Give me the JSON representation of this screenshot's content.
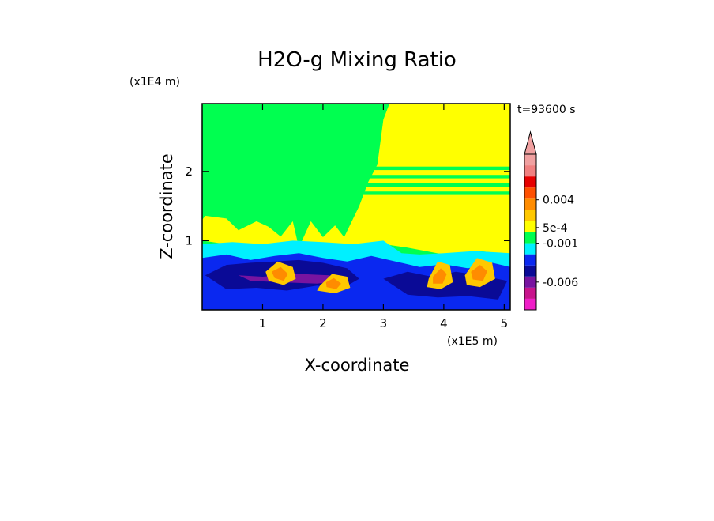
{
  "chart_data": {
    "type": "heatmap",
    "title": "H2O-g Mixing Ratio",
    "xlabel": "X-coordinate",
    "ylabel": "Z-coordinate",
    "x_unit": "(x1E5 m)",
    "y_unit": "(x1E4 m)",
    "time_label": "t=93600 s",
    "xlim": [
      0,
      5.1
    ],
    "ylim": [
      0,
      2.98
    ],
    "x_ticks": [
      "1",
      "2",
      "3",
      "4",
      "5"
    ],
    "y_ticks": [
      "1",
      "2"
    ],
    "colorbar": {
      "colors": [
        "#f01ec8",
        "#c8148c",
        "#7814a0",
        "#0a0a96",
        "#0a28f0",
        "#00f0ff",
        "#00ff50",
        "#ffff00",
        "#ffc800",
        "#ff8c00",
        "#ff5000",
        "#e60000",
        "#f08080",
        "#f0a0a0"
      ],
      "labels": [
        {
          "text": "-0.006",
          "level": 2.5
        },
        {
          "text": "-0.001",
          "level": 6.0
        },
        {
          "text": "5e-4",
          "level": 7.4
        },
        {
          "text": "0.004",
          "level": 9.9
        }
      ],
      "extend": "max"
    },
    "regions": [
      {
        "level": 7,
        "x": [
          0,
          0.05,
          0.4,
          0.6,
          0.9,
          1.1,
          1.3,
          1.5,
          1.6,
          1.8,
          2.0,
          2.2,
          2.35,
          2.6,
          2.75,
          2.9,
          3.0,
          3.1,
          3.4,
          3.7,
          4.0,
          4.3,
          4.6,
          4.9,
          5.1,
          5.1,
          4.6,
          4.0,
          3.4,
          3.0,
          2.7,
          2.4,
          2.0,
          1.6,
          1.2,
          0.8,
          0.4,
          0
        ],
        "y": [
          1.3,
          1.36,
          1.32,
          1.15,
          1.28,
          1.2,
          1.06,
          1.28,
          0.9,
          1.28,
          1.05,
          1.22,
          1.05,
          1.5,
          1.85,
          2.1,
          2.75,
          2.98,
          2.98,
          2.98,
          2.98,
          2.98,
          2.98,
          2.98,
          2.98,
          0.8,
          0.85,
          0.8,
          0.9,
          0.95,
          0.9,
          0.85,
          0.9,
          0.95,
          0.85,
          0.9,
          0.95,
          1.0
        ]
      },
      {
        "level": 5,
        "x": [
          0,
          0.5,
          1.0,
          1.5,
          2.0,
          2.5,
          3.0,
          3.3,
          3.6,
          4.0,
          4.5,
          5.1,
          5.1,
          0
        ],
        "y": [
          0.95,
          0.98,
          0.95,
          1.0,
          0.98,
          0.95,
          1.0,
          0.82,
          0.8,
          0.82,
          0.85,
          0.82,
          0,
          0
        ]
      },
      {
        "level": 4,
        "x": [
          0,
          0.4,
          0.8,
          1.2,
          1.6,
          2.0,
          2.4,
          2.8,
          3.2,
          3.6,
          4.0,
          4.4,
          4.8,
          5.1,
          5.1,
          0
        ],
        "y": [
          0.75,
          0.8,
          0.72,
          0.78,
          0.82,
          0.75,
          0.7,
          0.78,
          0.7,
          0.62,
          0.66,
          0.6,
          0.68,
          0.62,
          0,
          0
        ]
      },
      {
        "level": 3,
        "x": [
          0.05,
          0.4,
          0.8,
          1.2,
          1.6,
          2.0,
          2.4,
          2.6,
          2.3,
          1.9,
          1.4,
          0.9,
          0.4
        ],
        "y": [
          0.5,
          0.65,
          0.68,
          0.7,
          0.72,
          0.68,
          0.6,
          0.45,
          0.3,
          0.35,
          0.28,
          0.32,
          0.3
        ]
      },
      {
        "level": 3,
        "x": [
          3.0,
          3.4,
          3.8,
          4.2,
          4.6,
          5.05,
          4.9,
          4.4,
          3.9,
          3.4
        ],
        "y": [
          0.45,
          0.55,
          0.48,
          0.55,
          0.5,
          0.42,
          0.15,
          0.2,
          0.18,
          0.22
        ]
      },
      {
        "level": 2,
        "x": [
          0.6,
          1.0,
          1.6,
          2.1,
          2.3,
          1.9,
          1.3,
          0.8
        ],
        "y": [
          0.5,
          0.48,
          0.52,
          0.5,
          0.42,
          0.38,
          0.4,
          0.42
        ]
      },
      {
        "level": 8,
        "x": [
          1.05,
          1.25,
          1.5,
          1.55,
          1.35,
          1.1
        ],
        "y": [
          0.55,
          0.7,
          0.62,
          0.45,
          0.36,
          0.42
        ]
      },
      {
        "level": 8,
        "x": [
          1.95,
          2.15,
          2.4,
          2.45,
          2.2,
          1.9
        ],
        "y": [
          0.35,
          0.52,
          0.48,
          0.32,
          0.24,
          0.28
        ]
      },
      {
        "level": 8,
        "x": [
          3.75,
          3.9,
          4.1,
          4.15,
          3.95,
          3.72
        ],
        "y": [
          0.45,
          0.7,
          0.65,
          0.4,
          0.3,
          0.33
        ]
      },
      {
        "level": 8,
        "x": [
          4.35,
          4.55,
          4.8,
          4.85,
          4.6,
          4.38
        ],
        "y": [
          0.5,
          0.75,
          0.68,
          0.45,
          0.33,
          0.36
        ]
      },
      {
        "level": 9,
        "x": [
          1.15,
          1.3,
          1.42,
          1.35,
          1.2
        ],
        "y": [
          0.55,
          0.62,
          0.52,
          0.42,
          0.46
        ]
      },
      {
        "level": 9,
        "x": [
          2.05,
          2.18,
          2.3,
          2.22,
          2.06
        ],
        "y": [
          0.4,
          0.46,
          0.38,
          0.3,
          0.33
        ]
      },
      {
        "level": 9,
        "x": [
          3.82,
          3.95,
          4.05,
          3.98,
          3.82
        ],
        "y": [
          0.48,
          0.6,
          0.52,
          0.38,
          0.38
        ]
      },
      {
        "level": 9,
        "x": [
          4.45,
          4.6,
          4.72,
          4.65,
          4.48
        ],
        "y": [
          0.55,
          0.65,
          0.56,
          0.42,
          0.44
        ]
      }
    ],
    "bands": [
      {
        "level": 6,
        "x0": 2.6,
        "x1": 5.1,
        "y0": 2.02,
        "y1": 2.07
      },
      {
        "level": 6,
        "x0": 2.6,
        "x1": 5.1,
        "y0": 1.9,
        "y1": 1.95
      },
      {
        "level": 6,
        "x0": 2.6,
        "x1": 5.1,
        "y0": 1.78,
        "y1": 1.83
      },
      {
        "level": 6,
        "x0": 2.6,
        "x1": 5.1,
        "y0": 1.66,
        "y1": 1.71
      }
    ]
  }
}
